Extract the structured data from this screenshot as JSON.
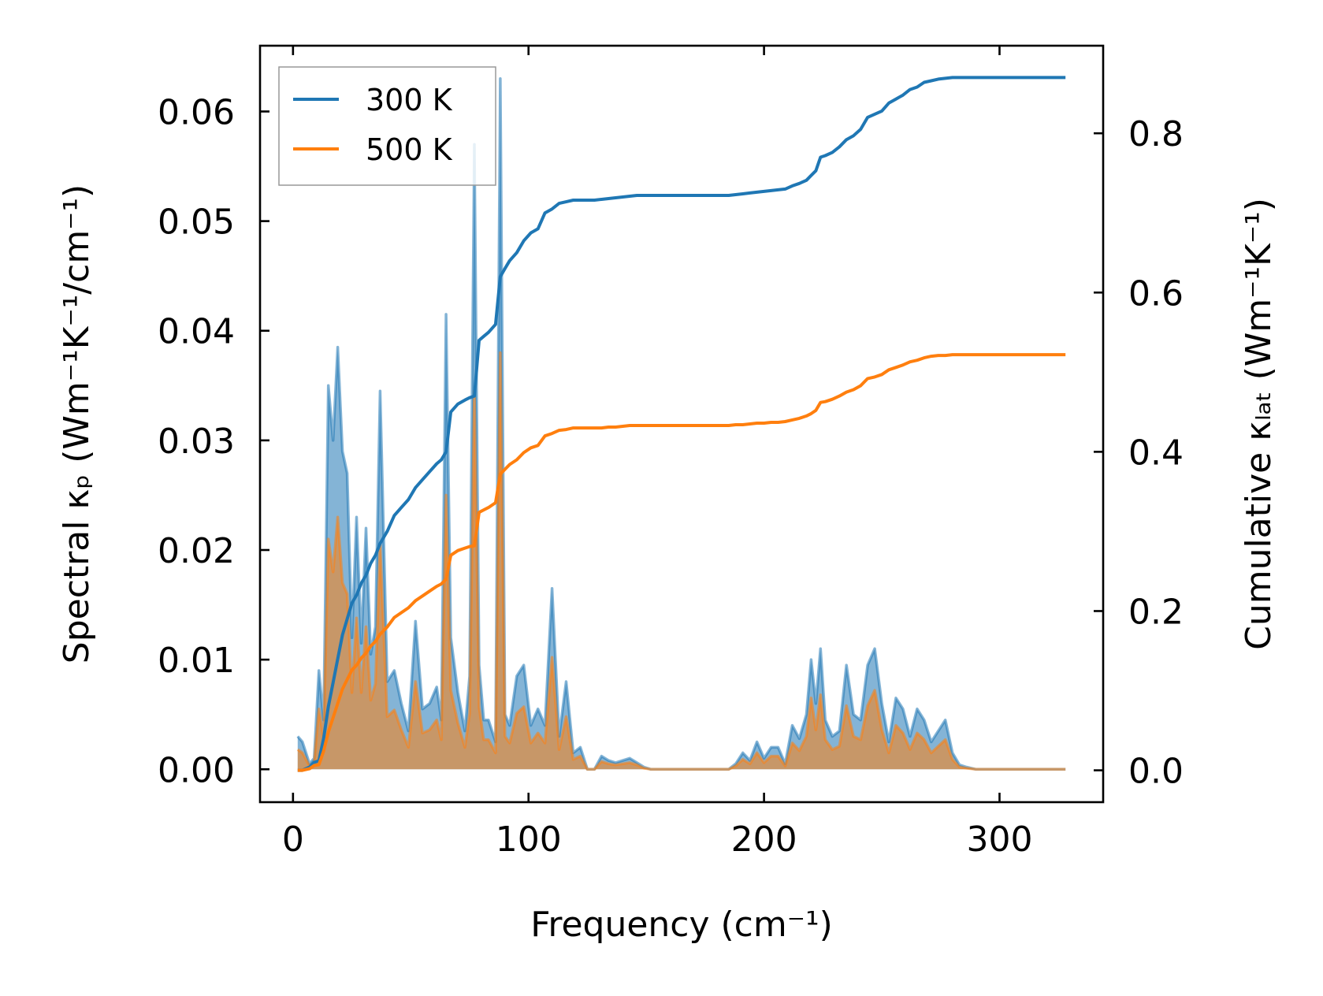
{
  "chart_data": {
    "type": "area",
    "xlabel": "Frequency (cm⁻¹)",
    "ylabel_left": "Spectral κₚ (Wm⁻¹K⁻¹/cm⁻¹)",
    "ylabel_right": "Cumulative κₗₐₜ (Wm⁻¹K⁻¹)",
    "xlim": [
      -14,
      344
    ],
    "ylim_left": [
      -0.003,
      0.066
    ],
    "ylim_right": [
      -0.04,
      0.91
    ],
    "x_ticks": [
      0,
      100,
      200,
      300
    ],
    "x_tick_labels": [
      "0",
      "100",
      "200",
      "300"
    ],
    "y_ticks_left": [
      0,
      0.01,
      0.02,
      0.03,
      0.04,
      0.05,
      0.06
    ],
    "y_tick_labels_left": [
      "0.00",
      "0.01",
      "0.02",
      "0.03",
      "0.04",
      "0.05",
      "0.06"
    ],
    "y_ticks_right": [
      0,
      0.2,
      0.4,
      0.6,
      0.8
    ],
    "y_tick_labels_right": [
      "0.0",
      "0.2",
      "0.4",
      "0.6",
      "0.8"
    ],
    "legend": {
      "position": "top-left",
      "entries": [
        {
          "label": "300 K",
          "color": "#1f77b4"
        },
        {
          "label": "500 K",
          "color": "#ff7f0e"
        }
      ]
    },
    "spectral_x": [
      2,
      4,
      7,
      9,
      11,
      13,
      15,
      17,
      19,
      21,
      23,
      25,
      27,
      29,
      31,
      33,
      35,
      37,
      40,
      43,
      46,
      49,
      52,
      55,
      58,
      61,
      63,
      65,
      67,
      70,
      73,
      75,
      77,
      79,
      81,
      83,
      86,
      88,
      90,
      92,
      95,
      98,
      101,
      104,
      107,
      110,
      113,
      116,
      119,
      122,
      125,
      128,
      131,
      134,
      137,
      140,
      143,
      146,
      149,
      152,
      155,
      160,
      170,
      180,
      185,
      188,
      191,
      194,
      197,
      200,
      203,
      206,
      209,
      212,
      215,
      218,
      220,
      222,
      224,
      226,
      229,
      232,
      235,
      238,
      241,
      244,
      247,
      250,
      253,
      256,
      259,
      262,
      265,
      268,
      271,
      274,
      277,
      280,
      283,
      286,
      290,
      300,
      310,
      320,
      328
    ],
    "series": [
      {
        "name": "300 K",
        "color": "#1f77b4",
        "spectral": [
          0.003,
          0.0025,
          0.0005,
          0.001,
          0.009,
          0.0045,
          0.035,
          0.03,
          0.0385,
          0.029,
          0.027,
          0.012,
          0.023,
          0.0115,
          0.022,
          0.0105,
          0.013,
          0.0345,
          0.008,
          0.009,
          0.006,
          0.0035,
          0.0135,
          0.0055,
          0.006,
          0.0075,
          0.0045,
          0.0415,
          0.012,
          0.007,
          0.0035,
          0.0085,
          0.057,
          0.0095,
          0.0045,
          0.0045,
          0.0025,
          0.063,
          0.005,
          0.004,
          0.0085,
          0.0095,
          0.004,
          0.0055,
          0.004,
          0.0165,
          0.003,
          0.008,
          0.0015,
          0.002,
          0,
          0,
          0.0012,
          0.0008,
          0.0006,
          0.0008,
          0.001,
          0.0006,
          0.0002,
          0,
          0,
          0,
          0,
          0,
          0,
          0.0005,
          0.0015,
          0.0008,
          0.0025,
          0.001,
          0.002,
          0.002,
          0.0005,
          0.004,
          0.0028,
          0.005,
          0.01,
          0.006,
          0.011,
          0.0045,
          0.003,
          0.0035,
          0.0095,
          0.005,
          0.0045,
          0.0095,
          0.011,
          0.006,
          0.0025,
          0.0065,
          0.0055,
          0.003,
          0.0055,
          0.0045,
          0.0025,
          0.0035,
          0.0045,
          0.0015,
          0.0004,
          0.0002,
          0,
          0,
          0,
          0,
          0
        ],
        "cumulative": [
          0,
          0,
          0.004,
          0.01,
          0.012,
          0.04,
          0.08,
          0.11,
          0.14,
          0.17,
          0.19,
          0.21,
          0.22,
          0.235,
          0.245,
          0.26,
          0.27,
          0.285,
          0.3,
          0.32,
          0.33,
          0.34,
          0.355,
          0.365,
          0.375,
          0.385,
          0.39,
          0.4,
          0.45,
          0.46,
          0.465,
          0.468,
          0.47,
          0.54,
          0.545,
          0.55,
          0.56,
          0.62,
          0.63,
          0.64,
          0.65,
          0.665,
          0.675,
          0.68,
          0.7,
          0.705,
          0.712,
          0.714,
          0.716,
          0.716,
          0.716,
          0.716,
          0.717,
          0.718,
          0.719,
          0.72,
          0.721,
          0.722,
          0.722,
          0.722,
          0.722,
          0.722,
          0.722,
          0.722,
          0.722,
          0.723,
          0.724,
          0.725,
          0.726,
          0.727,
          0.728,
          0.729,
          0.73,
          0.734,
          0.737,
          0.741,
          0.747,
          0.753,
          0.77,
          0.772,
          0.776,
          0.783,
          0.792,
          0.797,
          0.805,
          0.82,
          0.824,
          0.828,
          0.838,
          0.843,
          0.848,
          0.855,
          0.858,
          0.864,
          0.866,
          0.868,
          0.869,
          0.87,
          0.87,
          0.87,
          0.87,
          0.87,
          0.87,
          0.87,
          0.87
        ]
      },
      {
        "name": "500 K",
        "color": "#ff7f0e",
        "spectral": [
          0.0018,
          0.0015,
          0.0003,
          0.0006,
          0.0055,
          0.0028,
          0.021,
          0.018,
          0.023,
          0.017,
          0.016,
          0.007,
          0.0138,
          0.007,
          0.013,
          0.0063,
          0.0078,
          0.0205,
          0.0048,
          0.0054,
          0.0036,
          0.002,
          0.008,
          0.0033,
          0.0036,
          0.0045,
          0.0027,
          0.025,
          0.0072,
          0.0042,
          0.002,
          0.0051,
          0.0345,
          0.0057,
          0.0027,
          0.0027,
          0.0015,
          0.038,
          0.003,
          0.0024,
          0.0051,
          0.0057,
          0.0024,
          0.0033,
          0.0024,
          0.0102,
          0.0018,
          0.0048,
          0.0009,
          0.0012,
          0,
          0,
          0.0007,
          0.0005,
          0.0004,
          0.0005,
          0.0006,
          0.0004,
          0.0001,
          0,
          0,
          0,
          0,
          0,
          0,
          0.0003,
          0.0009,
          0.0005,
          0.0015,
          0.0006,
          0.0012,
          0.0012,
          0.0003,
          0.0024,
          0.0017,
          0.003,
          0.0065,
          0.0036,
          0.0068,
          0.0027,
          0.0018,
          0.0021,
          0.0058,
          0.003,
          0.0027,
          0.0058,
          0.0072,
          0.0036,
          0.0015,
          0.004,
          0.0033,
          0.0018,
          0.0033,
          0.0027,
          0.0015,
          0.0021,
          0.0027,
          0.0009,
          0.0002,
          0.0001,
          0,
          0,
          0,
          0,
          0
        ],
        "cumulative": [
          0,
          0,
          0.002,
          0.006,
          0.007,
          0.024,
          0.048,
          0.066,
          0.084,
          0.102,
          0.114,
          0.126,
          0.132,
          0.141,
          0.147,
          0.156,
          0.162,
          0.171,
          0.18,
          0.192,
          0.198,
          0.204,
          0.213,
          0.219,
          0.225,
          0.231,
          0.234,
          0.24,
          0.27,
          0.276,
          0.279,
          0.281,
          0.282,
          0.324,
          0.327,
          0.33,
          0.336,
          0.372,
          0.378,
          0.384,
          0.39,
          0.399,
          0.405,
          0.408,
          0.42,
          0.423,
          0.427,
          0.428,
          0.43,
          0.43,
          0.43,
          0.43,
          0.43,
          0.431,
          0.431,
          0.432,
          0.433,
          0.433,
          0.433,
          0.433,
          0.433,
          0.433,
          0.433,
          0.433,
          0.433,
          0.434,
          0.434,
          0.435,
          0.436,
          0.436,
          0.437,
          0.437,
          0.438,
          0.44,
          0.442,
          0.445,
          0.448,
          0.452,
          0.462,
          0.463,
          0.466,
          0.47,
          0.475,
          0.478,
          0.483,
          0.492,
          0.494,
          0.497,
          0.503,
          0.506,
          0.509,
          0.513,
          0.515,
          0.518,
          0.52,
          0.521,
          0.521,
          0.522,
          0.522,
          0.522,
          0.522,
          0.522,
          0.522,
          0.522,
          0.522
        ]
      }
    ]
  }
}
